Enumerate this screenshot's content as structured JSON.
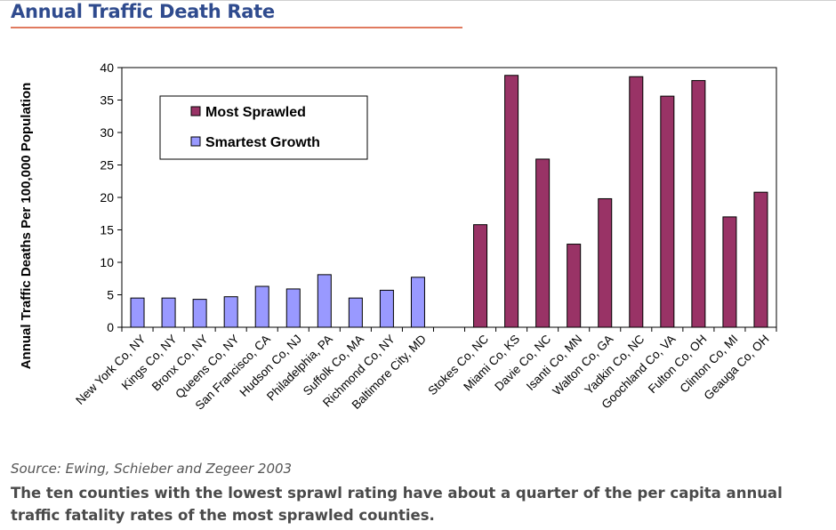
{
  "header": {
    "title": "Annual Traffic Death Rate"
  },
  "chart_data": {
    "type": "bar",
    "title": "",
    "xlabel": "",
    "ylabel": "Annual Traffic Deaths Per 100,000 Population",
    "ylim": [
      0,
      40
    ],
    "yticks": [
      0,
      5,
      10,
      15,
      20,
      25,
      30,
      35,
      40
    ],
    "grid": false,
    "legend_position": "top-left",
    "categories": [
      "New York Co, NY",
      "Kings Co, NY",
      "Bronx Co, NY",
      "Queens Co, NY",
      "San Francisco, CA",
      "Hudson Co, NJ",
      "Philadelphia, PA",
      "Suffolk Co, MA",
      "Richmond Co, NY",
      "Baltimore City, MD",
      "",
      "Stokes Co, NC",
      "Miami Co, KS",
      "Davie Co, NC",
      "Isanti Co, MN",
      "Walton Co, GA",
      "Yadkin Co, NC",
      "Goochland Co, VA",
      "Fulton Co, OH",
      "Clinton Co, MI",
      "Geauga Co, OH"
    ],
    "series": [
      {
        "name": "Most Sprawled",
        "color": "#993366",
        "values": [
          null,
          null,
          null,
          null,
          null,
          null,
          null,
          null,
          null,
          null,
          null,
          15.8,
          38.8,
          25.9,
          12.8,
          19.8,
          38.6,
          35.6,
          38.0,
          17.0,
          20.8
        ]
      },
      {
        "name": "Smartest Growth",
        "color": "#9999ff",
        "values": [
          4.5,
          4.5,
          4.3,
          4.7,
          6.3,
          5.9,
          8.1,
          4.5,
          5.7,
          7.7,
          null,
          null,
          null,
          null,
          null,
          null,
          null,
          null,
          null,
          null,
          null
        ]
      }
    ]
  },
  "footer": {
    "source": "Source: Ewing, Schieber and Zegeer 2003",
    "caption": "The ten counties with the lowest sprawl rating have about a quarter of the per capita annual traffic fatality rates of the most sprawled counties."
  }
}
